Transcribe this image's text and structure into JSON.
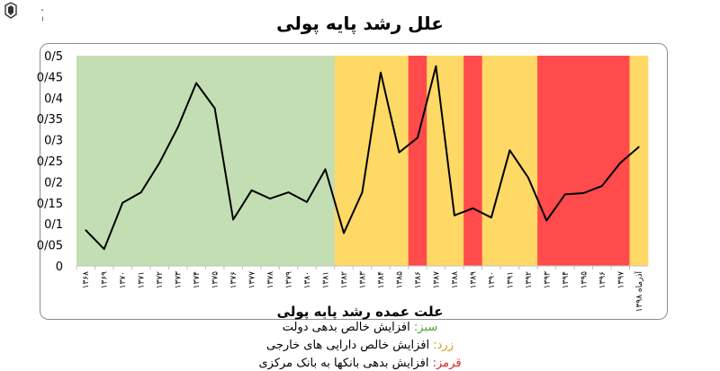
{
  "logo_text": "مجلس شورای اسلامی مرکز پژوهش ها",
  "chart_data": {
    "type": "line",
    "title": "علل رشد پایه پولی",
    "xlabel": "علت عمده رشد پایه پولی",
    "ylabel": "",
    "ylim": [
      0,
      0.5
    ],
    "y_ticks": [
      "0",
      "0/05",
      "0/1",
      "0/15",
      "0/2",
      "0/25",
      "0/3",
      "0/35",
      "0/4",
      "0/45",
      "0/5"
    ],
    "categories": [
      "۱۳۶۸",
      "۱۳۶۹",
      "۱۳۷۰",
      "۱۳۷۱",
      "۱۳۷۲",
      "۱۳۷۳",
      "۱۳۷۴",
      "۱۳۷۵",
      "۱۳۷۶",
      "۱۳۷۷",
      "۱۳۷۸",
      "۱۳۷۹",
      "۱۳۸۰",
      "۱۳۸۱",
      "۱۳۸۲",
      "۱۳۸۳",
      "۱۳۸۴",
      "۱۳۸۵",
      "۱۳۸۶",
      "۱۳۸۷",
      "۱۳۸۸",
      "۱۳۸۹",
      "۱۳۹۰",
      "۱۳۹۱",
      "۱۳۹۲",
      "۱۳۹۳",
      "۱۳۹۴",
      "۱۳۹۵",
      "۱۳۹۶",
      "۱۳۹۷",
      "آذرماه ۱۳۹۸"
    ],
    "values": [
      0.085,
      0.04,
      0.15,
      0.175,
      0.245,
      0.33,
      0.435,
      0.375,
      0.11,
      0.18,
      0.16,
      0.175,
      0.152,
      0.23,
      0.078,
      0.175,
      0.46,
      0.27,
      0.305,
      0.475,
      0.12,
      0.137,
      0.115,
      0.275,
      0.21,
      0.108,
      0.17,
      0.173,
      0.19,
      0.245,
      0.283
    ],
    "period_colors": [
      "green",
      "green",
      "green",
      "green",
      "green",
      "green",
      "green",
      "green",
      "green",
      "green",
      "green",
      "green",
      "green",
      "green",
      "yellow",
      "yellow",
      "yellow",
      "yellow",
      "red",
      "yellow",
      "yellow",
      "red",
      "yellow",
      "yellow",
      "yellow",
      "red",
      "red",
      "red",
      "red",
      "red",
      "yellow"
    ],
    "colors": {
      "green": "#c4deb3",
      "yellow": "#ffd966",
      "red": "#ff4b4b",
      "line": "#000000"
    }
  },
  "legend": {
    "green_key": "سبز:",
    "green_text": " افزایش خالص بدهی دولت",
    "green_color": "#4ea72e",
    "yellow_key": "زرد:",
    "yellow_text": " افزایش خالص دارایی های خارجی",
    "yellow_color": "#c9a227",
    "red_key": "قرمز:",
    "red_text": " افزایش بدهی بانکها به بانک مرکزی",
    "red_color": "#e02020"
  }
}
